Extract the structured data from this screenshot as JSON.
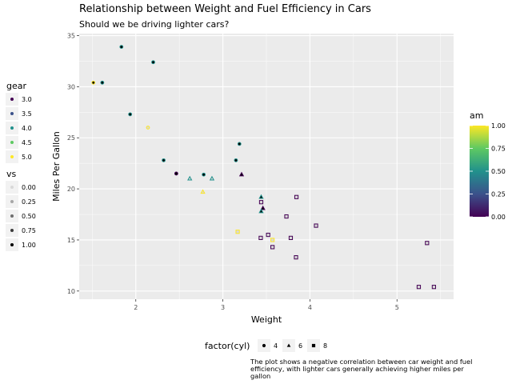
{
  "title": "Relationship between Weight and Fuel Efficiency in Cars",
  "subtitle": "Should we be driving lighter cars?",
  "caption": "The plot shows a negative correlation between car weight and fuel efficiency, with lighter cars generally achieving higher miles per gallon",
  "chart_data": {
    "type": "scatter",
    "xlabel": "Weight",
    "ylabel": "Miles Per Gallon",
    "xlim": [
      1.35,
      5.65
    ],
    "ylim": [
      9.2,
      35.2
    ],
    "x_ticks": [
      2,
      3,
      4,
      5
    ],
    "y_ticks": [
      10,
      15,
      20,
      25,
      30,
      35
    ],
    "grid": true,
    "points": [
      {
        "wt": 2.62,
        "mpg": 21.0,
        "cyl": 6,
        "am": 1,
        "gear": 4,
        "vs": 0
      },
      {
        "wt": 2.875,
        "mpg": 21.0,
        "cyl": 6,
        "am": 1,
        "gear": 4,
        "vs": 0
      },
      {
        "wt": 2.32,
        "mpg": 22.8,
        "cyl": 4,
        "am": 1,
        "gear": 4,
        "vs": 1
      },
      {
        "wt": 3.215,
        "mpg": 21.4,
        "cyl": 6,
        "am": 0,
        "gear": 3,
        "vs": 1
      },
      {
        "wt": 3.44,
        "mpg": 18.7,
        "cyl": 8,
        "am": 0,
        "gear": 3,
        "vs": 0
      },
      {
        "wt": 3.46,
        "mpg": 18.1,
        "cyl": 6,
        "am": 0,
        "gear": 3,
        "vs": 1
      },
      {
        "wt": 3.57,
        "mpg": 14.3,
        "cyl": 8,
        "am": 0,
        "gear": 3,
        "vs": 0
      },
      {
        "wt": 3.19,
        "mpg": 24.4,
        "cyl": 4,
        "am": 0,
        "gear": 4,
        "vs": 1
      },
      {
        "wt": 3.15,
        "mpg": 22.8,
        "cyl": 4,
        "am": 0,
        "gear": 4,
        "vs": 1
      },
      {
        "wt": 3.44,
        "mpg": 19.2,
        "cyl": 6,
        "am": 0,
        "gear": 4,
        "vs": 1
      },
      {
        "wt": 3.44,
        "mpg": 17.8,
        "cyl": 6,
        "am": 0,
        "gear": 4,
        "vs": 1
      },
      {
        "wt": 4.07,
        "mpg": 16.4,
        "cyl": 8,
        "am": 0,
        "gear": 3,
        "vs": 0
      },
      {
        "wt": 3.73,
        "mpg": 17.3,
        "cyl": 8,
        "am": 0,
        "gear": 3,
        "vs": 0
      },
      {
        "wt": 3.78,
        "mpg": 15.2,
        "cyl": 8,
        "am": 0,
        "gear": 3,
        "vs": 0
      },
      {
        "wt": 5.25,
        "mpg": 10.4,
        "cyl": 8,
        "am": 0,
        "gear": 3,
        "vs": 0
      },
      {
        "wt": 5.424,
        "mpg": 10.4,
        "cyl": 8,
        "am": 0,
        "gear": 3,
        "vs": 0
      },
      {
        "wt": 5.345,
        "mpg": 14.7,
        "cyl": 8,
        "am": 0,
        "gear": 3,
        "vs": 0
      },
      {
        "wt": 2.2,
        "mpg": 32.4,
        "cyl": 4,
        "am": 1,
        "gear": 4,
        "vs": 1
      },
      {
        "wt": 1.615,
        "mpg": 30.4,
        "cyl": 4,
        "am": 1,
        "gear": 4,
        "vs": 1
      },
      {
        "wt": 1.835,
        "mpg": 33.9,
        "cyl": 4,
        "am": 1,
        "gear": 4,
        "vs": 1
      },
      {
        "wt": 2.465,
        "mpg": 21.5,
        "cyl": 4,
        "am": 0,
        "gear": 3,
        "vs": 1
      },
      {
        "wt": 3.52,
        "mpg": 15.5,
        "cyl": 8,
        "am": 0,
        "gear": 3,
        "vs": 0
      },
      {
        "wt": 3.435,
        "mpg": 15.2,
        "cyl": 8,
        "am": 0,
        "gear": 3,
        "vs": 0
      },
      {
        "wt": 3.84,
        "mpg": 13.3,
        "cyl": 8,
        "am": 0,
        "gear": 3,
        "vs": 0
      },
      {
        "wt": 3.845,
        "mpg": 19.2,
        "cyl": 8,
        "am": 0,
        "gear": 3,
        "vs": 0
      },
      {
        "wt": 1.935,
        "mpg": 27.3,
        "cyl": 4,
        "am": 1,
        "gear": 4,
        "vs": 1
      },
      {
        "wt": 2.14,
        "mpg": 26.0,
        "cyl": 4,
        "am": 1,
        "gear": 5,
        "vs": 0
      },
      {
        "wt": 1.513,
        "mpg": 30.4,
        "cyl": 4,
        "am": 1,
        "gear": 5,
        "vs": 1
      },
      {
        "wt": 3.17,
        "mpg": 15.8,
        "cyl": 8,
        "am": 1,
        "gear": 5,
        "vs": 0
      },
      {
        "wt": 2.77,
        "mpg": 19.7,
        "cyl": 6,
        "am": 1,
        "gear": 5,
        "vs": 0
      },
      {
        "wt": 3.57,
        "mpg": 15.0,
        "cyl": 8,
        "am": 1,
        "gear": 5,
        "vs": 0
      },
      {
        "wt": 2.78,
        "mpg": 21.4,
        "cyl": 4,
        "am": 1,
        "gear": 4,
        "vs": 1
      }
    ],
    "legends": {
      "gear": {
        "title": "gear",
        "labels": [
          "3.0",
          "3.5",
          "4.0",
          "4.5",
          "5.0"
        ],
        "colors": [
          "#440154",
          "#3b528b",
          "#21918c",
          "#5ec962",
          "#fde725"
        ]
      },
      "vs": {
        "title": "vs",
        "labels": [
          "0.00",
          "0.25",
          "0.50",
          "0.75",
          "1.00"
        ],
        "colors": [
          "#d9d9d9",
          "#a6a6a6",
          "#6e6e6e",
          "#3a3a3a",
          "#000000"
        ]
      },
      "am": {
        "title": "am",
        "labels": [
          "1.00",
          "0.75",
          "0.50",
          "0.25",
          "0.00"
        ],
        "colors": [
          "#fde725",
          "#5ec962",
          "#21918c",
          "#3b528b",
          "#440154"
        ]
      },
      "cyl": {
        "title": "factor(cyl)",
        "labels": [
          "4",
          "6",
          "8"
        ],
        "shapes": [
          "circle",
          "triangle",
          "square"
        ]
      }
    }
  }
}
